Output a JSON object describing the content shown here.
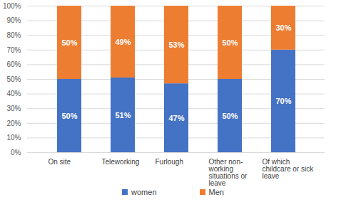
{
  "chart_data": {
    "type": "bar",
    "stacked": true,
    "categories": [
      "On site",
      "Teleworking",
      "Furlough",
      "Other non-working situations or leave",
      "Of which childcare or sick leave"
    ],
    "series": [
      {
        "name": "women",
        "color": "#4472c4",
        "values": [
          50,
          51,
          47,
          50,
          70
        ],
        "value_labels": [
          "50%",
          "51%",
          "47%",
          "50%",
          "70%"
        ]
      },
      {
        "name": "Men",
        "color": "#ed7d31",
        "values": [
          50,
          49,
          53,
          50,
          30
        ],
        "value_labels": [
          "50%",
          "49%",
          "53%",
          "50%",
          "30%"
        ]
      }
    ],
    "ylim": [
      0,
      100
    ],
    "yticks": [
      {
        "value": 0,
        "label": "0%"
      },
      {
        "value": 10,
        "label": "10%"
      },
      {
        "value": 20,
        "label": "20%"
      },
      {
        "value": 30,
        "label": "30%"
      },
      {
        "value": 40,
        "label": "40%"
      },
      {
        "value": 50,
        "label": "50%"
      },
      {
        "value": 60,
        "label": "60%"
      },
      {
        "value": 70,
        "label": "70%"
      },
      {
        "value": 80,
        "label": "80%"
      },
      {
        "value": 90,
        "label": "90%"
      },
      {
        "value": 100,
        "label": "100%"
      }
    ],
    "grid": true,
    "data_labels": true,
    "legend": "bottom"
  }
}
